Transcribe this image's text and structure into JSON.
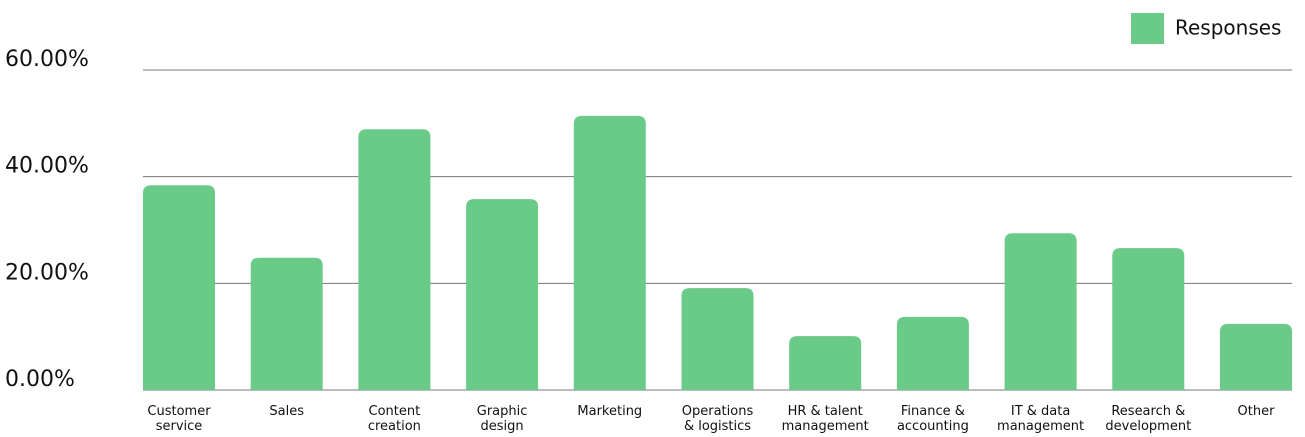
{
  "chart_data": {
    "type": "bar",
    "categories": [
      "Customer\nservice",
      "Sales",
      "Content\ncreation",
      "Graphic\ndesign",
      "Marketing",
      "Operations\n& logistics",
      "HR & talent\nmanagement",
      "Finance &\naccounting",
      "IT & data\nmanagement",
      "Research &\ndevelopment",
      "Other"
    ],
    "series": [
      {
        "name": "Responses",
        "color": "#6aca87",
        "values": [
          38.4,
          24.8,
          48.9,
          35.8,
          51.4,
          19.1,
          10.1,
          13.7,
          29.4,
          26.6,
          12.4
        ]
      }
    ],
    "ylim": [
      0,
      60
    ],
    "yticks": [
      {
        "value": 0,
        "label": "0.00%"
      },
      {
        "value": 20,
        "label": "20.00%"
      },
      {
        "value": 40,
        "label": "40.00%"
      },
      {
        "value": 60,
        "label": "60.00%"
      }
    ],
    "grid": true,
    "legend": "top-right"
  }
}
